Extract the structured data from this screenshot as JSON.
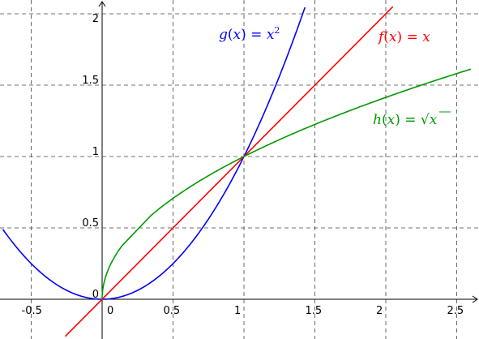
{
  "chart_data": {
    "type": "line",
    "xlim": [
      -0.72,
      2.6
    ],
    "ylim": [
      -0.26,
      2.05
    ],
    "grid": true,
    "grid_style": "dashed",
    "x_ticks": [
      -0.5,
      0,
      0.5,
      1,
      1.5,
      2,
      2.5
    ],
    "y_ticks": [
      0,
      0.5,
      1,
      1.5,
      2
    ],
    "x_tick_labels": [
      "-0.5",
      "0",
      "0.5",
      "1",
      "1.5",
      "2",
      "2.5"
    ],
    "y_tick_labels": [
      "0",
      "0.5",
      "1",
      "1.5",
      "2"
    ],
    "series": [
      {
        "name": "g(x) = x²",
        "label_parts": {
          "fn": "g",
          "arg": "x",
          "rhs": "x",
          "sup": "2"
        },
        "formula": "x^2",
        "color": "#0000ff",
        "x": [
          -0.7,
          -0.5,
          -0.25,
          0,
          0.25,
          0.5,
          0.75,
          1,
          1.25,
          1.43
        ],
        "y": [
          0.49,
          0.25,
          0.0625,
          0,
          0.0625,
          0.25,
          0.5625,
          1,
          1.5625,
          2.05
        ]
      },
      {
        "name": "f(x) = x",
        "label_parts": {
          "fn": "f",
          "arg": "x",
          "rhs": "x"
        },
        "formula": "x",
        "color": "#ff0000",
        "x": [
          -0.26,
          0,
          0.5,
          1,
          1.5,
          2,
          2.05
        ],
        "y": [
          -0.26,
          0,
          0.5,
          1,
          1.5,
          2,
          2.05
        ]
      },
      {
        "name": "h(x) = √x",
        "label_parts": {
          "fn": "h",
          "arg": "x",
          "rhs": "x"
        },
        "formula": "sqrt(x)",
        "color": "#009900",
        "x": [
          0,
          0.0625,
          0.25,
          0.5,
          1,
          1.5,
          2,
          2.5,
          2.6
        ],
        "y": [
          0,
          0.25,
          0.5,
          0.707,
          1,
          1.225,
          1.414,
          1.581,
          1.612
        ]
      }
    ]
  }
}
